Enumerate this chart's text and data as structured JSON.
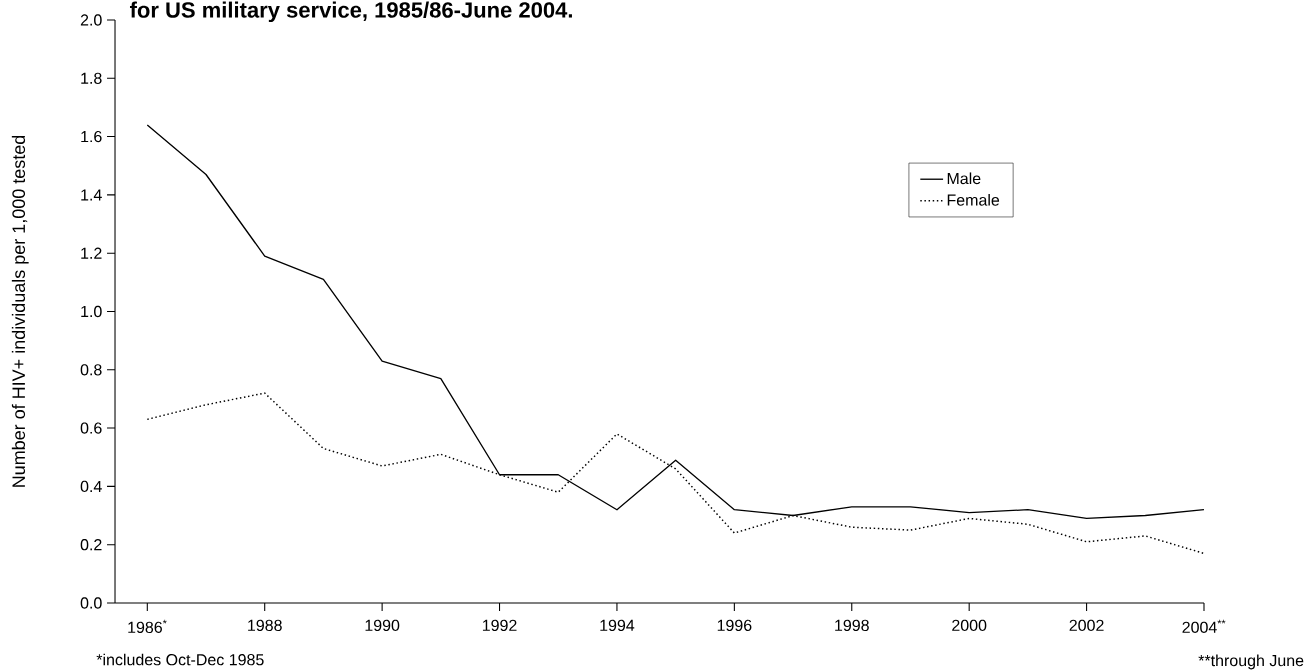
{
  "chart_data": {
    "type": "line",
    "title": "for US military service, 1985/86-June 2004.",
    "ylabel": "Number of HIV+ individuals per 1,000 tested",
    "x": [
      1986,
      1987,
      1988,
      1989,
      1990,
      1991,
      1992,
      1993,
      1994,
      1995,
      1996,
      1997,
      1998,
      1999,
      2000,
      2001,
      2002,
      2003,
      2004
    ],
    "series": [
      {
        "name": "Male",
        "color": "#000000",
        "line_style": "solid",
        "values": [
          1.64,
          1.47,
          1.19,
          1.11,
          0.83,
          0.77,
          0.44,
          0.44,
          0.32,
          0.49,
          0.32,
          0.3,
          0.33,
          0.33,
          0.31,
          0.32,
          0.29,
          0.3,
          0.32
        ]
      },
      {
        "name": "Female",
        "color": "#000000",
        "line_style": "dotted",
        "values": [
          0.63,
          0.68,
          0.72,
          0.53,
          0.47,
          0.51,
          0.44,
          0.38,
          0.58,
          0.46,
          0.24,
          0.3,
          0.26,
          0.25,
          0.29,
          0.27,
          0.21,
          0.23,
          0.17
        ]
      }
    ],
    "xlim": [
      1985.45,
      2004
    ],
    "xticks": [
      {
        "value": 1986,
        "label": "1986$^{*}$"
      },
      1988,
      1990,
      1992,
      1994,
      1996,
      1998,
      2000,
      2002,
      {
        "value": 2004,
        "label": "2004$^{**}$"
      }
    ],
    "ylim": [
      0,
      2
    ],
    "yticks": [
      {
        "value": 0,
        "label": "0.0"
      },
      {
        "value": 0.2,
        "label": "0.2"
      },
      {
        "value": 0.4,
        "label": "0.4"
      },
      {
        "value": 0.6,
        "label": "0.6"
      },
      {
        "value": 0.8,
        "label": "0.8"
      },
      {
        "value": 1.0,
        "label": "1.0"
      },
      {
        "value": 1.2,
        "label": "1.2"
      },
      {
        "value": 1.4,
        "label": "1.4"
      },
      {
        "value": 1.6,
        "label": "1.6"
      },
      {
        "value": 1.8,
        "label": "1.8"
      },
      {
        "value": 2.0,
        "label": "2.0"
      }
    ],
    "legend": "top right",
    "grid": false,
    "marker": "none",
    "annotations": [
      "*includes Oct-Dec 1985",
      "**through June"
    ]
  }
}
